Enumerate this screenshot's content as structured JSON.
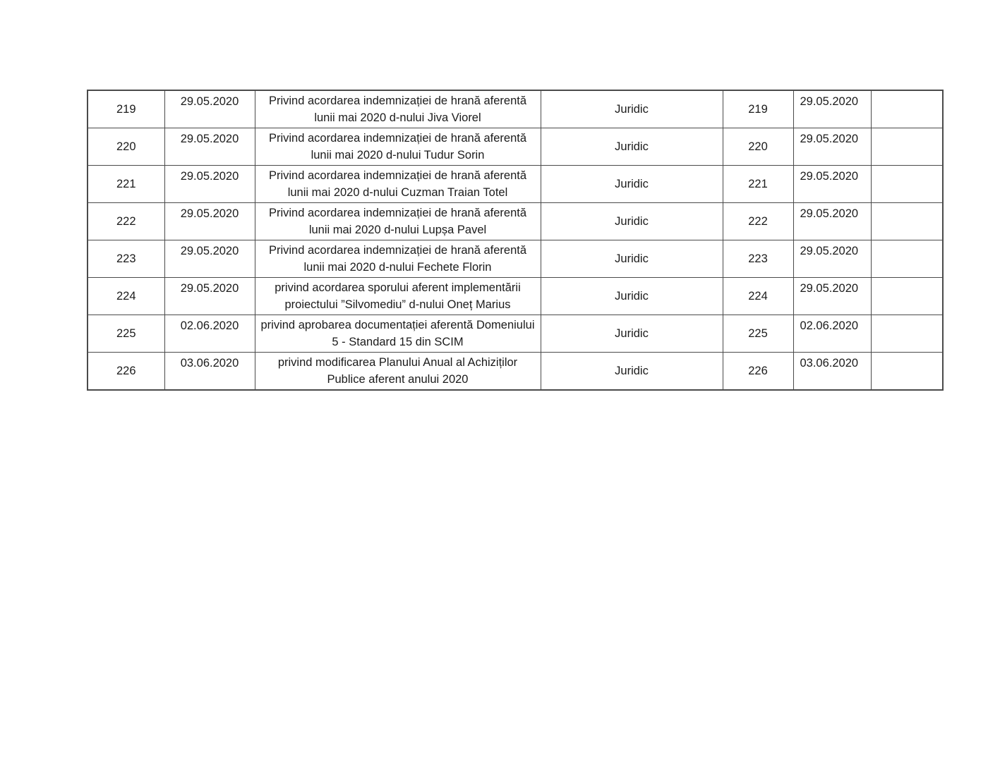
{
  "table": {
    "border_color": "#4a4a4a",
    "col_keys": [
      "number",
      "date",
      "description",
      "department",
      "number_copy",
      "date_copy",
      "empty"
    ],
    "rows": [
      {
        "number": "219",
        "date": "29.05.2020",
        "description": "Privind acordarea indemnizației de hrană aferentă lunii mai 2020 d-nului Jiva Viorel",
        "department": "Juridic",
        "number_copy": "219",
        "date_copy": "29.05.2020",
        "empty": ""
      },
      {
        "number": "220",
        "date": "29.05.2020",
        "description": "Privind acordarea indemnizației de hrană aferentă lunii mai 2020 d-nului Tudur Sorin",
        "department": "Juridic",
        "number_copy": "220",
        "date_copy": "29.05.2020",
        "empty": ""
      },
      {
        "number": "221",
        "date": "29.05.2020",
        "description": "Privind acordarea indemnizației de hrană aferentă lunii mai 2020 d-nului Cuzman Traian Totel",
        "department": "Juridic",
        "number_copy": "221",
        "date_copy": "29.05.2020",
        "empty": ""
      },
      {
        "number": "222",
        "date": "29.05.2020",
        "description": "Privind acordarea indemnizației de hrană aferentă lunii mai 2020 d-nului Lupșa Pavel",
        "department": "Juridic",
        "number_copy": "222",
        "date_copy": "29.05.2020",
        "empty": ""
      },
      {
        "number": "223",
        "date": "29.05.2020",
        "description": "Privind acordarea indemnizației de hrană aferentă lunii mai 2020 d-nului Fechete Florin",
        "department": "Juridic",
        "number_copy": "223",
        "date_copy": "29.05.2020",
        "empty": ""
      },
      {
        "number": "224",
        "date": "29.05.2020",
        "description": "privind acordarea sporului aferent implementării proiectului ”Silvomediu” d-nului Oneț Marius",
        "department": "Juridic",
        "number_copy": "224",
        "date_copy": "29.05.2020",
        "empty": ""
      },
      {
        "number": "225",
        "date": "02.06.2020",
        "description": "privind aprobarea documentației aferentă Domeniului 5 - Standard 15 din SCIM",
        "department": "Juridic",
        "number_copy": "225",
        "date_copy": "02.06.2020",
        "empty": ""
      },
      {
        "number": "226",
        "date": "03.06.2020",
        "description": "privind modificarea Planului Anual al Achiziților Publice aferent anului 2020",
        "department": "Juridic",
        "number_copy": "226",
        "date_copy": "03.06.2020",
        "empty": ""
      }
    ]
  }
}
